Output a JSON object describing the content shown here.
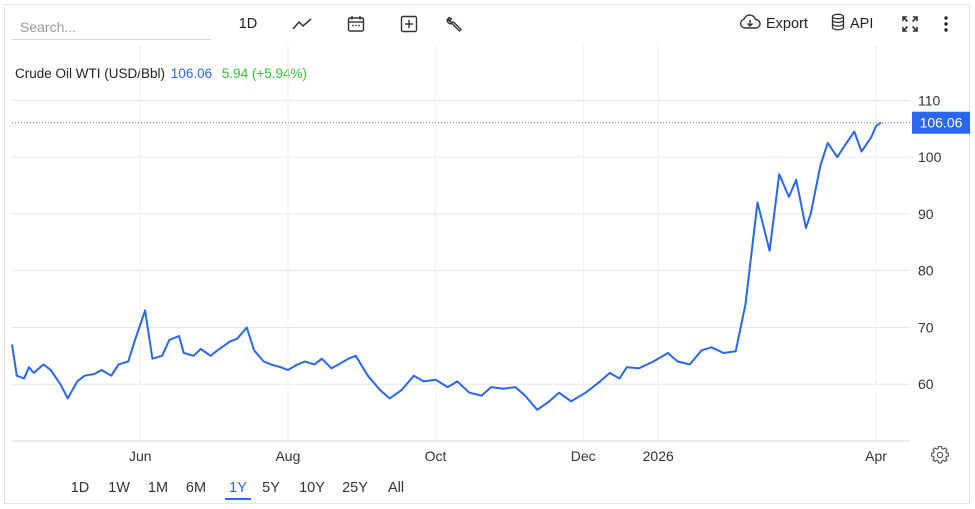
{
  "toolbar": {
    "search_placeholder": "Search...",
    "interval_label": "1D",
    "icons": [
      "line-chart-icon",
      "calendar-icon",
      "plus-square-icon",
      "wrench-icon",
      "cloud-download-icon",
      "database-icon",
      "expand-icon",
      "more-vert-icon"
    ],
    "export_label": "Export",
    "api_label": "API"
  },
  "legend": {
    "name": "Crude Oil WTI (USD/Bbl)",
    "value": "106.06",
    "change": "5.94 (+5.94%)"
  },
  "colors": {
    "line": "#2b66f0",
    "change_positive": "#34c235",
    "grid": "#e6e6e6",
    "last_label_bg": "#2b66f0"
  },
  "ranges": {
    "items": [
      "1D",
      "1W",
      "1M",
      "6M",
      "1Y",
      "5Y",
      "10Y",
      "25Y",
      "All"
    ],
    "active": "1Y"
  },
  "chart_data": {
    "type": "line",
    "series": [
      {
        "name": "Crude Oil WTI (USD/Bbl)",
        "x": [
          "2025-04-09",
          "2025-04-11",
          "2025-04-14",
          "2025-04-16",
          "2025-04-18",
          "2025-04-22",
          "2025-04-25",
          "2025-04-29",
          "2025-05-02",
          "2025-05-06",
          "2025-05-09",
          "2025-05-13",
          "2025-05-16",
          "2025-05-20",
          "2025-05-23",
          "2025-05-27",
          "2025-05-30",
          "2025-06-03",
          "2025-06-06",
          "2025-06-10",
          "2025-06-13",
          "2025-06-17",
          "2025-06-19",
          "2025-06-23",
          "2025-06-26",
          "2025-06-30",
          "2025-07-03",
          "2025-07-08",
          "2025-07-11",
          "2025-07-15",
          "2025-07-18",
          "2025-07-22",
          "2025-07-25",
          "2025-07-29",
          "2025-08-01",
          "2025-08-05",
          "2025-08-08",
          "2025-08-12",
          "2025-08-15",
          "2025-08-19",
          "2025-08-22",
          "2025-08-26",
          "2025-08-29",
          "2025-09-03",
          "2025-09-08",
          "2025-09-12",
          "2025-09-17",
          "2025-09-22",
          "2025-09-26",
          "2025-10-01",
          "2025-10-06",
          "2025-10-10",
          "2025-10-15",
          "2025-10-20",
          "2025-10-24",
          "2025-10-29",
          "2025-11-03",
          "2025-11-07",
          "2025-11-12",
          "2025-11-17",
          "2025-11-21",
          "2025-11-26",
          "2025-12-02",
          "2025-12-08",
          "2025-12-12",
          "2025-12-16",
          "2025-12-19",
          "2025-12-24",
          "2025-12-30",
          "2026-01-05",
          "2026-01-09",
          "2026-01-14",
          "2026-01-19",
          "2026-01-23",
          "2026-01-28",
          "2026-02-02",
          "2026-02-06",
          "2026-02-11",
          "2026-02-16",
          "2026-02-20",
          "2026-02-24",
          "2026-02-27",
          "2026-03-03",
          "2026-03-05",
          "2026-03-09",
          "2026-03-12",
          "2026-03-16",
          "2026-03-19",
          "2026-03-23",
          "2026-03-26",
          "2026-03-30",
          "2026-04-01",
          "2026-04-03"
        ],
        "y": [
          67.0,
          61.5,
          61.0,
          63.0,
          62.0,
          63.5,
          62.5,
          60.0,
          57.5,
          60.5,
          61.5,
          61.8,
          62.5,
          61.5,
          63.5,
          64.0,
          68.0,
          73.0,
          64.5,
          65.0,
          67.8,
          68.5,
          65.5,
          65.0,
          66.2,
          65.0,
          66.0,
          67.5,
          68.0,
          70.0,
          66.0,
          64.0,
          63.5,
          63.0,
          62.5,
          63.5,
          64.0,
          63.5,
          64.5,
          62.8,
          63.5,
          64.5,
          65.0,
          61.5,
          59.0,
          57.5,
          59.0,
          61.5,
          60.5,
          60.8,
          59.5,
          60.5,
          58.5,
          58.0,
          59.5,
          59.2,
          59.5,
          58.0,
          55.5,
          57.0,
          58.5,
          57.0,
          58.5,
          60.5,
          62.0,
          61.0,
          63.0,
          62.8,
          64.0,
          65.5,
          64.0,
          63.5,
          66.0,
          66.5,
          65.5,
          65.8,
          74.0,
          92.0,
          83.5,
          97.0,
          93.0,
          96.0,
          87.5,
          90.0,
          98.5,
          102.5,
          100.0,
          102.0,
          104.5,
          101.0,
          103.5,
          105.5,
          106.06
        ]
      }
    ],
    "x_ticks": [
      "Jun",
      "Aug",
      "Oct",
      "Dec",
      "2026",
      "Apr"
    ],
    "y_ticks": [
      60,
      70,
      80,
      90,
      100,
      110
    ],
    "ylim": [
      50,
      112
    ],
    "xlim": [
      "2025-04-09",
      "2026-04-08"
    ],
    "last_value_label": "106.06",
    "grid": true,
    "y_axis_position": "right"
  }
}
